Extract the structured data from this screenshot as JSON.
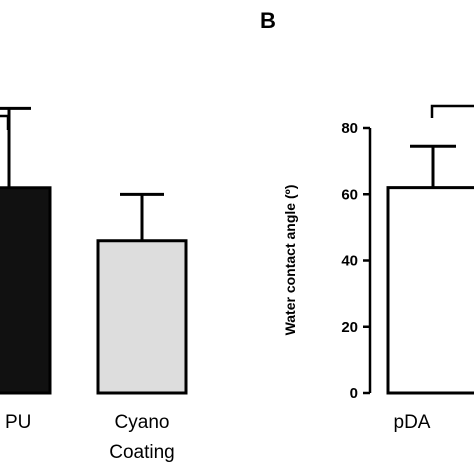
{
  "chart_data": [
    {
      "panel_label": "",
      "type": "bar",
      "categories": [
        "PU",
        "Cyano\nCoating"
      ],
      "category_labels": [
        "PU",
        "Cyano",
        "Coating"
      ],
      "values": [
        62,
        46
      ],
      "errors": [
        24,
        14
      ],
      "bar_colors": [
        "#111111",
        "#dddddd"
      ],
      "ylim": [
        0,
        100
      ],
      "significance_bracket": true
    },
    {
      "panel_label": "B",
      "type": "bar",
      "categories": [
        "pDA"
      ],
      "values": [
        62
      ],
      "errors": [
        12.5
      ],
      "bar_colors": [
        "#ffffff"
      ],
      "ylabel": "Water contact angle (º)",
      "yticks": [
        0,
        20,
        40,
        60,
        80
      ],
      "ylim": [
        0,
        80
      ],
      "significance_bracket": true
    }
  ]
}
